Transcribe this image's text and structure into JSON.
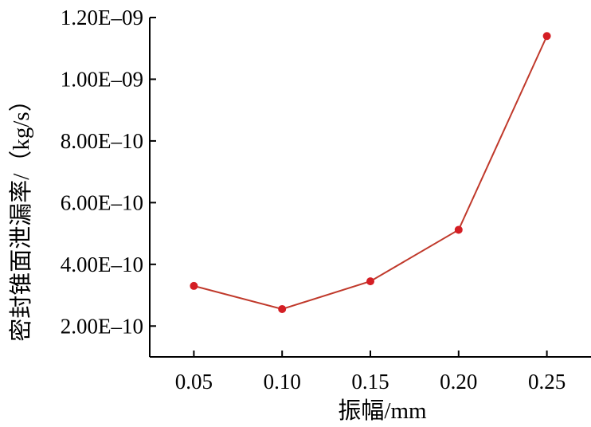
{
  "chart_data": {
    "type": "line",
    "title": "",
    "xlabel": "振幅/mm",
    "ylabel": "密封锥面泄漏率/（kg/s）",
    "x": [
      0.05,
      0.1,
      0.15,
      0.2,
      0.25
    ],
    "x_tick_labels": [
      "0.05",
      "0.10",
      "0.15",
      "0.20",
      "0.25"
    ],
    "y_ticks": [
      2e-10,
      4e-10,
      6e-10,
      8e-10,
      1e-09,
      1.2e-09
    ],
    "y_tick_labels": [
      "2.00E–10",
      "4.00E–10",
      "6.00E–10",
      "8.00E–10",
      "1.00E–09",
      "1.20E–09"
    ],
    "xlim": [
      0.025,
      0.275
    ],
    "ylim": [
      1e-10,
      1.2e-09
    ],
    "series": [
      {
        "values": [
          3.3e-10,
          2.55e-10,
          3.45e-10,
          5.12e-10,
          1.14e-09
        ]
      }
    ],
    "grid": false,
    "legend": "none",
    "colors": {
      "line": "#c0392b",
      "marker": "#d41e24",
      "axis": "#000000"
    }
  }
}
